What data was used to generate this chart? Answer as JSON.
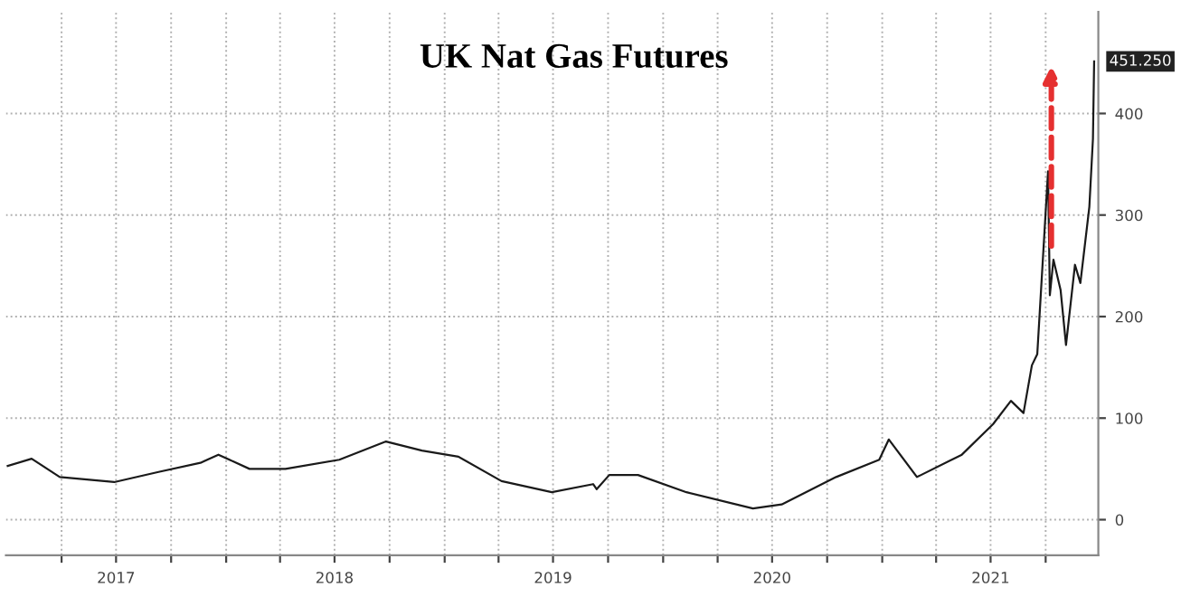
{
  "chart_data": {
    "type": "line",
    "title": "UK Nat Gas Futures",
    "x": [
      "2017-01-01",
      "2017-02-10",
      "2017-03-29",
      "2017-06-28",
      "2017-09-10",
      "2017-11-19",
      "2017-12-19",
      "2018-02-09",
      "2018-04-10",
      "2018-07-09",
      "2018-09-25",
      "2018-11-24",
      "2019-01-24",
      "2019-04-06",
      "2019-06-29",
      "2019-09-06",
      "2019-09-12",
      "2019-10-03",
      "2019-11-20",
      "2020-02-09",
      "2020-05-30",
      "2020-07-17",
      "2020-10-16",
      "2020-12-27",
      "2021-01-12",
      "2021-02-28",
      "2021-05-14",
      "2021-07-05",
      "2021-08-04",
      "2021-08-25",
      "2021-09-08",
      "2021-09-17",
      "2021-10-05",
      "2021-10-08",
      "2021-10-14",
      "2021-10-26",
      "2021-11-04",
      "2021-11-19",
      "2021-11-28",
      "2021-12-13",
      "2021-12-19",
      "2021-12-21"
    ],
    "series": [
      {
        "color": "#1a1a1a",
        "values": [
          53,
          60,
          42,
          37,
          47,
          56,
          64,
          50,
          50,
          59,
          77,
          68,
          62,
          38,
          27,
          35,
          30,
          44,
          44,
          27,
          11,
          15,
          42,
          59,
          79,
          42,
          64,
          94,
          117,
          105,
          152,
          163,
          343,
          221,
          256,
          226,
          172,
          251,
          233,
          308,
          375,
          451.25
        ]
      }
    ],
    "xlim": [
      "2016-12-29",
      "2021-12-28"
    ],
    "xticks": [
      {
        "value": "2017-04-01",
        "label": null
      },
      {
        "value": "2017-07-01",
        "label": "2017"
      },
      {
        "value": "2017-10-01",
        "label": null
      },
      {
        "value": "2018-01-01",
        "label": null
      },
      {
        "value": "2018-04-01",
        "label": null
      },
      {
        "value": "2018-07-01",
        "label": "2018"
      },
      {
        "value": "2018-10-01",
        "label": null
      },
      {
        "value": "2019-01-01",
        "label": null
      },
      {
        "value": "2019-04-01",
        "label": null
      },
      {
        "value": "2019-07-01",
        "label": "2019"
      },
      {
        "value": "2019-10-01",
        "label": null
      },
      {
        "value": "2020-01-01",
        "label": null
      },
      {
        "value": "2020-04-01",
        "label": null
      },
      {
        "value": "2020-07-01",
        "label": "2020"
      },
      {
        "value": "2020-10-01",
        "label": null
      },
      {
        "value": "2021-01-01",
        "label": null
      },
      {
        "value": "2021-04-01",
        "label": null
      },
      {
        "value": "2021-07-01",
        "label": "2021"
      },
      {
        "value": "2021-10-01",
        "label": null
      }
    ],
    "ylim": [
      -35,
      500
    ],
    "yticks": [
      0,
      100,
      200,
      300,
      400
    ],
    "annotations": [
      {
        "text": "451.250",
        "x": "2021-12-21",
        "y": 451.25
      }
    ],
    "grid": true,
    "legend": false,
    "line_style": "solid",
    "marker": "none"
  }
}
